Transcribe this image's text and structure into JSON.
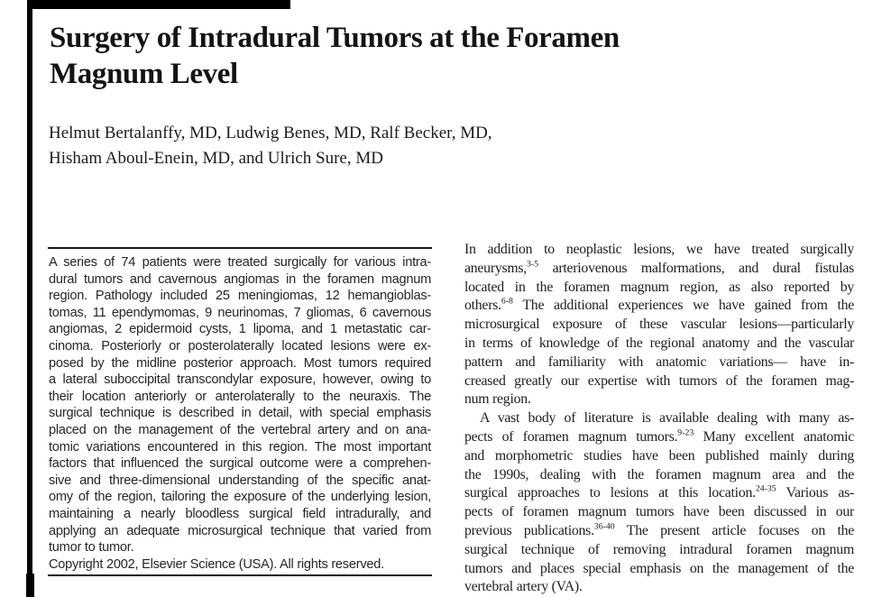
{
  "colors": {
    "page_background": "#ffffff",
    "text_ink": "#1d1d1d",
    "abstract_ink": "#262626",
    "rule_color": "#161616",
    "scan_artifact": "#000000"
  },
  "article": {
    "title": "Surgery of Intradural Tumors at the Foramen\nMagnum Level",
    "authors": "Helmut Bertalanffy, MD, Ludwig Benes, MD, Ralf Becker, MD,\nHisham Aboul-Enein, MD, and Ulrich Sure, MD"
  },
  "abstract": {
    "lines": [
      {
        "segs": [
          {
            "t": "A series of 74 patients were treated surgically for various intra-"
          }
        ]
      },
      {
        "segs": [
          {
            "t": "dural tumors and cavernous angiomas in the foramen magnum"
          }
        ]
      },
      {
        "segs": [
          {
            "t": "region. Pathology included 25 meningiomas, 12 hemangioblas-"
          }
        ]
      },
      {
        "segs": [
          {
            "t": "tomas, 11 ependymomas, 9 neurinomas, 7 gliomas, 6 cavernous"
          }
        ]
      },
      {
        "segs": [
          {
            "t": "angiomas, 2 epidermoid cysts, 1 lipoma, and 1 metastatic car-"
          }
        ]
      },
      {
        "segs": [
          {
            "t": "cinoma. Posteriorly or posterolaterally located lesions were ex-"
          }
        ]
      },
      {
        "segs": [
          {
            "t": "posed by the midline posterior approach. Most tumors required"
          }
        ]
      },
      {
        "segs": [
          {
            "t": "a lateral suboccipital transcondylar exposure, however, owing to"
          }
        ]
      },
      {
        "segs": [
          {
            "t": "their location anteriorly or anterolaterally to the neuraxis. The"
          }
        ]
      },
      {
        "segs": [
          {
            "t": "surgical technique is described in detail, with special emphasis"
          }
        ]
      },
      {
        "segs": [
          {
            "t": "placed on the management of the vertebral artery and on ana-"
          }
        ]
      },
      {
        "segs": [
          {
            "t": "tomic variations encountered in this region. The most important"
          }
        ]
      },
      {
        "segs": [
          {
            "t": "factors that influenced the surgical outcome were a comprehen-"
          }
        ]
      },
      {
        "segs": [
          {
            "t": "sive and three-dimensional understanding of the specific anat-"
          }
        ]
      },
      {
        "segs": [
          {
            "t": "omy of the region, tailoring the exposure of the underlying lesion,"
          }
        ]
      },
      {
        "segs": [
          {
            "t": "maintaining a nearly bloodless surgical field intradurally, and"
          }
        ]
      },
      {
        "segs": [
          {
            "t": "applying an adequate microsurgical technique that varied from"
          }
        ]
      },
      {
        "segs": [
          {
            "t": "tumor to tumor."
          }
        ],
        "end": true
      },
      {
        "segs": [
          {
            "t": "Copyright 2002, Elsevier Science (USA). All rights reserved."
          }
        ],
        "end": true
      }
    ]
  },
  "body": {
    "lines": [
      {
        "segs": [
          {
            "t": "In addition to neoplastic lesions, we have treated surgically"
          }
        ]
      },
      {
        "segs": [
          {
            "t": "aneurysms,"
          },
          {
            "s": "3-5"
          },
          {
            "t": " arteriovenous malformations, and dural fistulas"
          }
        ]
      },
      {
        "segs": [
          {
            "t": "located in the foramen magnum region, as also reported by"
          }
        ]
      },
      {
        "segs": [
          {
            "t": "others."
          },
          {
            "s": "6-8"
          },
          {
            "t": " The additional experiences we have gained from the"
          }
        ]
      },
      {
        "segs": [
          {
            "t": "microsurgical exposure of these vascular lesions—particularly"
          }
        ]
      },
      {
        "segs": [
          {
            "t": "in terms of knowledge of the regional anatomy and the vascular"
          }
        ]
      },
      {
        "segs": [
          {
            "t": "pattern and familiarity with anatomic variations— have in-"
          }
        ]
      },
      {
        "segs": [
          {
            "t": "creased greatly our expertise with tumors of the foramen mag-"
          }
        ]
      },
      {
        "segs": [
          {
            "t": "num region."
          }
        ],
        "end": true
      },
      {
        "segs": [
          {
            "t": "A vast body of literature is available dealing with many as-"
          }
        ],
        "indent": true
      },
      {
        "segs": [
          {
            "t": "pects of foramen magnum tumors."
          },
          {
            "s": "9-23"
          },
          {
            "t": " Many excellent anatomic"
          }
        ]
      },
      {
        "segs": [
          {
            "t": "and morphometric studies have been published mainly during"
          }
        ]
      },
      {
        "segs": [
          {
            "t": "the 1990s, dealing with the foramen magnum area and the"
          }
        ]
      },
      {
        "segs": [
          {
            "t": "surgical approaches to lesions at this location."
          },
          {
            "s": "24-35"
          },
          {
            "t": " Various as-"
          }
        ]
      },
      {
        "segs": [
          {
            "t": "pects of foramen magnum tumors have been discussed in our"
          }
        ]
      },
      {
        "segs": [
          {
            "t": "previous publications."
          },
          {
            "s": "36-40"
          },
          {
            "t": " The present article focuses on the"
          }
        ]
      },
      {
        "segs": [
          {
            "t": "surgical technique of removing intradural foramen magnum"
          }
        ]
      },
      {
        "segs": [
          {
            "t": "tumors and places special emphasis on the management of the"
          }
        ]
      },
      {
        "segs": [
          {
            "t": "vertebral artery (VA)."
          }
        ],
        "end": true
      }
    ]
  }
}
